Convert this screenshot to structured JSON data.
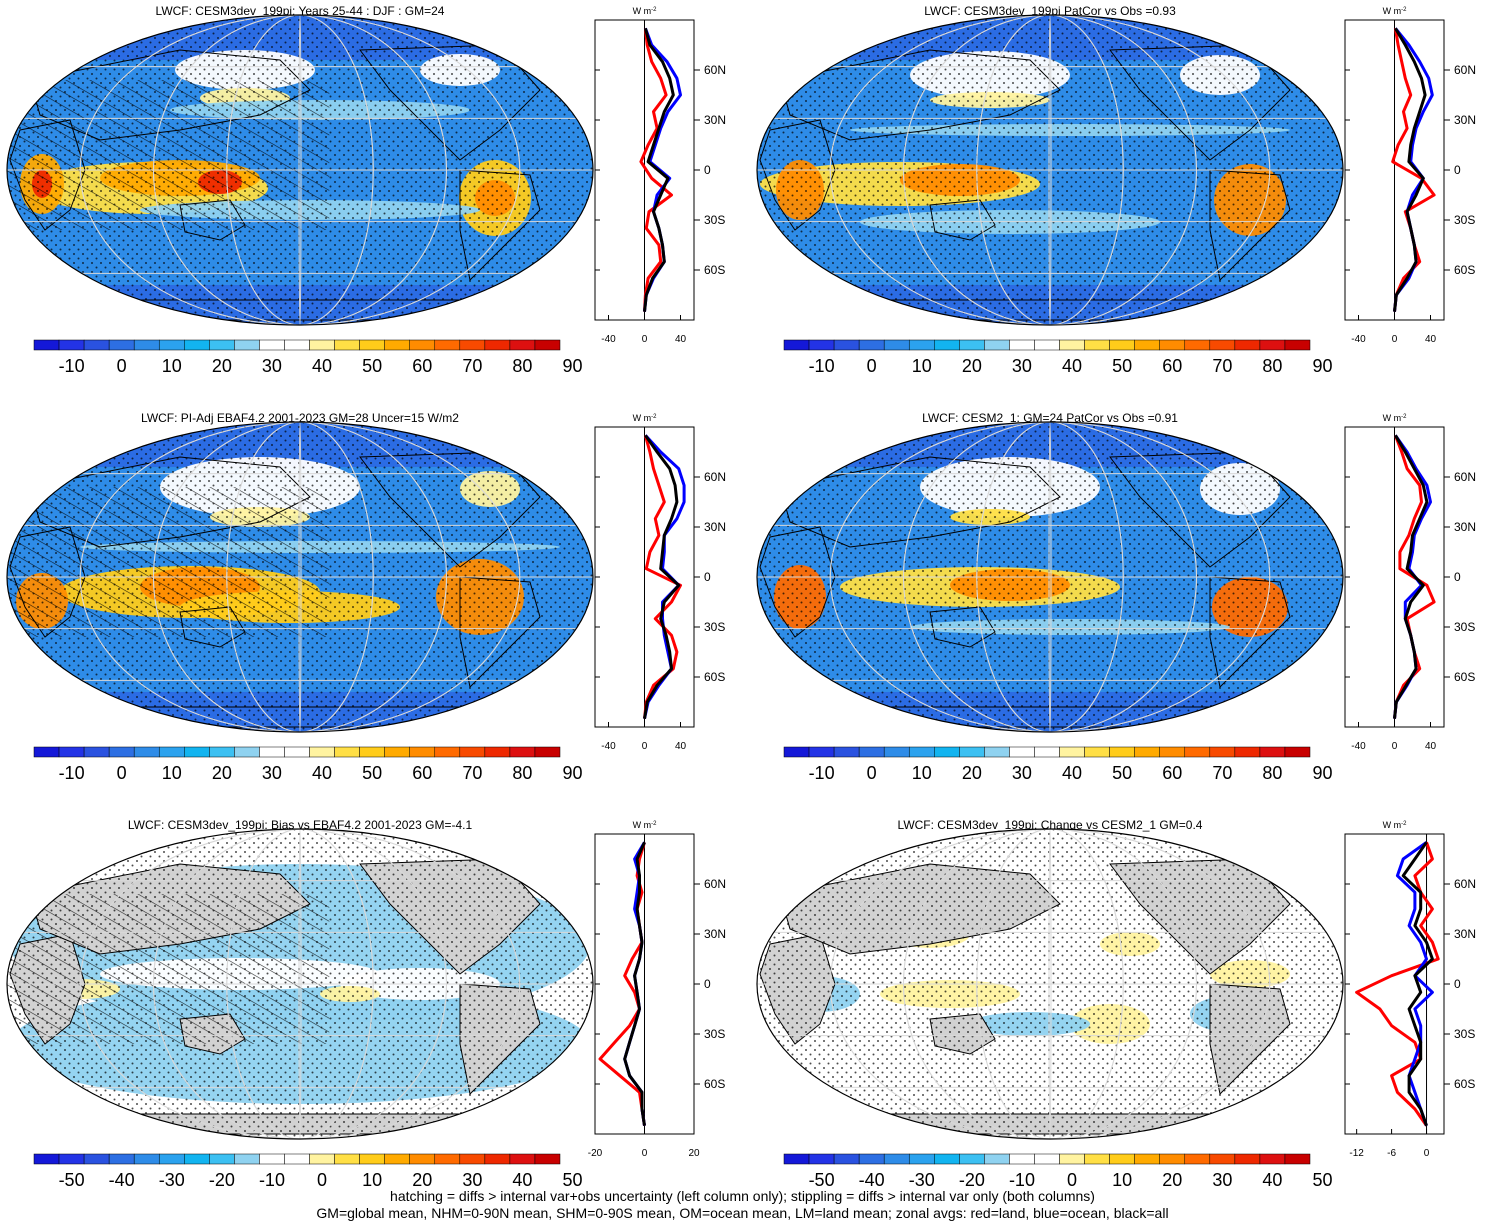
{
  "palettes": {
    "full": [
      "#1418d8",
      "#2333e6",
      "#2a52e0",
      "#2d6fe3",
      "#2e8ce8",
      "#2ba2ee",
      "#12b4f0",
      "#3cc0f2",
      "#8fd2f0",
      "#ffffff",
      "#ffffff",
      "#fff3a0",
      "#ffdf45",
      "#ffcc1a",
      "#ffaa00",
      "#ff8c00",
      "#ff6a00",
      "#f84a00",
      "#ee2800",
      "#dd1010",
      "#c80000"
    ],
    "diff": [
      "#1418d8",
      "#2333e6",
      "#2a52e0",
      "#2d6fe3",
      "#2e8ce8",
      "#2ba2ee",
      "#12b4f0",
      "#3cc0f2",
      "#8fd2f0",
      "#ffffff",
      "#ffffff",
      "#fff3a0",
      "#ffdf45",
      "#ffcc1a",
      "#ffaa00",
      "#ff8c00",
      "#ff6a00",
      "#f84a00",
      "#ee2800",
      "#dd1010",
      "#c80000"
    ]
  },
  "colors": {
    "land": "#d2d2d2",
    "zonal_land": "#ff0000",
    "zonal_ocean": "#0000ff",
    "zonal_all": "#000000"
  },
  "panels": [
    {
      "title": "LWCF: CESM3dev_199pi: Years 25-44 : DJF : GM=24",
      "palette": "full",
      "colorbar_labels": [
        "-10",
        "0",
        "10",
        "20",
        "30",
        "40",
        "50",
        "60",
        "70",
        "80",
        "90"
      ],
      "zonal_xticks": [
        "-40",
        "0",
        "40"
      ],
      "zonal_units": "W m",
      "zonal_units_sup": "-2",
      "lat_labels": [
        "60N",
        "30N",
        "0",
        "30S",
        "60S"
      ]
    },
    {
      "title": "LWCF: CESM3dev_199pi PatCor vs Obs =0.93",
      "palette": "full",
      "colorbar_labels": [
        "-10",
        "0",
        "10",
        "20",
        "30",
        "40",
        "50",
        "60",
        "70",
        "80",
        "90"
      ],
      "zonal_xticks": [
        "-40",
        "0",
        "40"
      ],
      "zonal_units": "W m",
      "zonal_units_sup": "-2",
      "lat_labels": [
        "60N",
        "30N",
        "0",
        "30S",
        "60S"
      ]
    },
    {
      "title": "LWCF: PI-Adj EBAF4.2 2001-2023 GM=28 Uncer=15 W/m2",
      "palette": "full",
      "colorbar_labels": [
        "-10",
        "0",
        "10",
        "20",
        "30",
        "40",
        "50",
        "60",
        "70",
        "80",
        "90"
      ],
      "zonal_xticks": [
        "-40",
        "0",
        "40"
      ],
      "zonal_units": "W m",
      "zonal_units_sup": "-2",
      "lat_labels": [
        "60N",
        "30N",
        "0",
        "30S",
        "60S"
      ]
    },
    {
      "title": "LWCF: CESM2_1: GM=24 PatCor vs Obs =0.91",
      "palette": "full",
      "colorbar_labels": [
        "-10",
        "0",
        "10",
        "20",
        "30",
        "40",
        "50",
        "60",
        "70",
        "80",
        "90"
      ],
      "zonal_xticks": [
        "-40",
        "0",
        "40"
      ],
      "zonal_units": "W m",
      "zonal_units_sup": "-2",
      "lat_labels": [
        "60N",
        "30N",
        "0",
        "30S",
        "60S"
      ]
    },
    {
      "title": "LWCF: CESM3dev_199pi: Bias vs EBAF4.2 2001-2023 GM=-4.1",
      "palette": "diff",
      "colorbar_labels": [
        "-50",
        "-40",
        "-30",
        "-20",
        "-10",
        "0",
        "10",
        "20",
        "30",
        "40",
        "50"
      ],
      "zonal_xticks": [
        "-20",
        "0",
        "20"
      ],
      "zonal_units": "W m",
      "zonal_units_sup": "-2",
      "lat_labels": [
        "60N",
        "30N",
        "0",
        "30S",
        "60S"
      ]
    },
    {
      "title": "LWCF: CESM3dev_199pi: Change vs CESM2_1 GM=0.4",
      "palette": "diff",
      "colorbar_labels": [
        "-50",
        "-40",
        "-30",
        "-20",
        "-10",
        "0",
        "10",
        "20",
        "30",
        "40",
        "50"
      ],
      "zonal_xticks": [
        "-12",
        "-6",
        "0"
      ],
      "zonal_units": "W m",
      "zonal_units_sup": "-2",
      "lat_labels": [
        "60N",
        "30N",
        "0",
        "30S",
        "60S"
      ]
    }
  ],
  "chart_data": [
    {
      "type": "line",
      "title": "LWCF: CESM3dev_199pi: Years 25-44 : DJF : GM=24",
      "y_lat": [
        85,
        75,
        65,
        55,
        45,
        35,
        25,
        15,
        5,
        -5,
        -15,
        -25,
        -35,
        -45,
        -55,
        -65,
        -75,
        -85
      ],
      "xlim": [
        -55,
        55
      ],
      "series": [
        {
          "name": "land",
          "values": [
            1,
            3,
            8,
            18,
            24,
            10,
            14,
            4,
            -4,
            8,
            30,
            5,
            2,
            16,
            18,
            4,
            1,
            0
          ]
        },
        {
          "name": "ocean",
          "values": [
            1,
            8,
            25,
            36,
            40,
            26,
            18,
            12,
            6,
            28,
            14,
            10,
            16,
            20,
            22,
            10,
            2,
            0
          ]
        },
        {
          "name": "all",
          "values": [
            1,
            6,
            20,
            28,
            32,
            22,
            16,
            10,
            4,
            26,
            18,
            10,
            16,
            20,
            22,
            9,
            2,
            0
          ]
        }
      ]
    },
    {
      "type": "line",
      "title": "LWCF: CESM3dev_199pi PatCor vs Obs =0.93",
      "y_lat": [
        85,
        75,
        65,
        55,
        45,
        35,
        25,
        15,
        5,
        -5,
        -15,
        -25,
        -35,
        -45,
        -55,
        -65,
        -75,
        -85
      ],
      "xlim": [
        -55,
        55
      ],
      "series": [
        {
          "name": "land",
          "values": [
            1,
            4,
            8,
            12,
            18,
            10,
            14,
            4,
            -2,
            30,
            44,
            12,
            18,
            22,
            28,
            10,
            2,
            0
          ]
        },
        {
          "name": "ocean",
          "values": [
            1,
            16,
            28,
            38,
            42,
            32,
            24,
            20,
            18,
            32,
            20,
            14,
            18,
            22,
            24,
            16,
            2,
            0
          ]
        },
        {
          "name": "all",
          "values": [
            1,
            12,
            22,
            30,
            34,
            28,
            22,
            18,
            16,
            32,
            24,
            14,
            18,
            22,
            24,
            14,
            2,
            0
          ]
        }
      ]
    },
    {
      "type": "line",
      "title": "LWCF: PI-Adj EBAF4.2 2001-2023 GM=28 Uncer=15 W/m2",
      "y_lat": [
        85,
        75,
        65,
        55,
        45,
        35,
        25,
        15,
        5,
        -5,
        -15,
        -25,
        -35,
        -45,
        -55,
        -65,
        -75,
        -85
      ],
      "xlim": [
        -55,
        55
      ],
      "series": [
        {
          "name": "land",
          "values": [
            1,
            6,
            10,
            16,
            22,
            12,
            16,
            6,
            2,
            40,
            30,
            12,
            30,
            36,
            32,
            10,
            2,
            0
          ]
        },
        {
          "name": "ocean",
          "values": [
            1,
            18,
            38,
            44,
            44,
            36,
            22,
            22,
            20,
            38,
            20,
            20,
            22,
            26,
            30,
            16,
            4,
            0
          ]
        },
        {
          "name": "all",
          "values": [
            1,
            14,
            28,
            34,
            36,
            30,
            22,
            20,
            18,
            38,
            22,
            18,
            24,
            28,
            30,
            14,
            3,
            0
          ]
        }
      ]
    },
    {
      "type": "line",
      "title": "LWCF: CESM2_1: GM=24 PatCor vs Obs =0.91",
      "y_lat": [
        85,
        75,
        65,
        55,
        45,
        35,
        25,
        15,
        5,
        -5,
        -15,
        -25,
        -35,
        -45,
        -55,
        -65,
        -75,
        -85
      ],
      "xlim": [
        -55,
        55
      ],
      "series": [
        {
          "name": "land",
          "values": [
            1,
            8,
            14,
            28,
            30,
            22,
            16,
            6,
            6,
            36,
            44,
            14,
            18,
            22,
            28,
            10,
            2,
            0
          ]
        },
        {
          "name": "ocean",
          "values": [
            1,
            14,
            24,
            36,
            40,
            30,
            22,
            20,
            16,
            30,
            12,
            12,
            18,
            22,
            24,
            14,
            2,
            0
          ]
        },
        {
          "name": "all",
          "values": [
            1,
            12,
            22,
            32,
            36,
            28,
            20,
            18,
            14,
            32,
            18,
            12,
            18,
            22,
            24,
            13,
            2,
            0
          ]
        }
      ]
    },
    {
      "type": "line",
      "title": "LWCF: CESM3dev_199pi: Bias vs EBAF4.2 2001-2023 GM=-4.1",
      "y_lat": [
        85,
        75,
        65,
        55,
        45,
        35,
        25,
        15,
        5,
        -5,
        -15,
        -25,
        -35,
        -45,
        -55,
        -65,
        -75,
        -85
      ],
      "xlim": [
        -20,
        20
      ],
      "series": [
        {
          "name": "land",
          "values": [
            0,
            -2,
            -3,
            -1,
            -3,
            -2,
            -1,
            -5,
            -8,
            -4,
            -2,
            -6,
            -12,
            -18,
            -10,
            -2,
            -1,
            0
          ]
        },
        {
          "name": "ocean",
          "values": [
            0,
            -4,
            -2,
            -3,
            -4,
            -2,
            -1,
            -2,
            -4,
            -3,
            -2,
            -4,
            -6,
            -8,
            -6,
            -1,
            -1,
            0
          ]
        },
        {
          "name": "all",
          "values": [
            0,
            -3,
            -2,
            -2,
            -3,
            -2,
            -1,
            -2,
            -4,
            -3,
            -2,
            -4,
            -6,
            -8,
            -6,
            -1,
            -1,
            0
          ]
        }
      ]
    },
    {
      "type": "line",
      "title": "LWCF: CESM3dev_199pi: Change vs CESM2_1 GM=0.4",
      "y_lat": [
        85,
        75,
        65,
        55,
        45,
        35,
        25,
        15,
        5,
        -5,
        -15,
        -25,
        -35,
        -45,
        -55,
        -65,
        -75,
        -85
      ],
      "xlim": [
        -14,
        3
      ],
      "series": [
        {
          "name": "land",
          "values": [
            0,
            1,
            -2,
            -1,
            1,
            -1,
            1,
            2,
            -6,
            -12,
            -8,
            -6,
            -2,
            -1,
            -6,
            -5,
            -2,
            0
          ]
        },
        {
          "name": "ocean",
          "values": [
            0,
            -4,
            -5,
            -2,
            -2,
            -3,
            -1,
            0,
            -2,
            1,
            -2,
            -1,
            -1,
            -2,
            -3,
            -2,
            -1,
            0
          ]
        },
        {
          "name": "all",
          "values": [
            0,
            -2,
            -4,
            -1,
            -1,
            -2,
            0,
            1,
            -2,
            -1,
            -3,
            -2,
            -1,
            -1,
            -3,
            -3,
            -1,
            0
          ]
        }
      ]
    }
  ],
  "footer": {
    "line1": "hatching = diffs > internal var+obs uncertainty (left column only); stippling = diffs > internal var only (both columns)",
    "line2": "GM=global mean, NHM=0-90N mean, SHM=0-90S mean, OM=ocean mean, LM=land mean; zonal avgs: red=land, blue=ocean, black=all"
  }
}
